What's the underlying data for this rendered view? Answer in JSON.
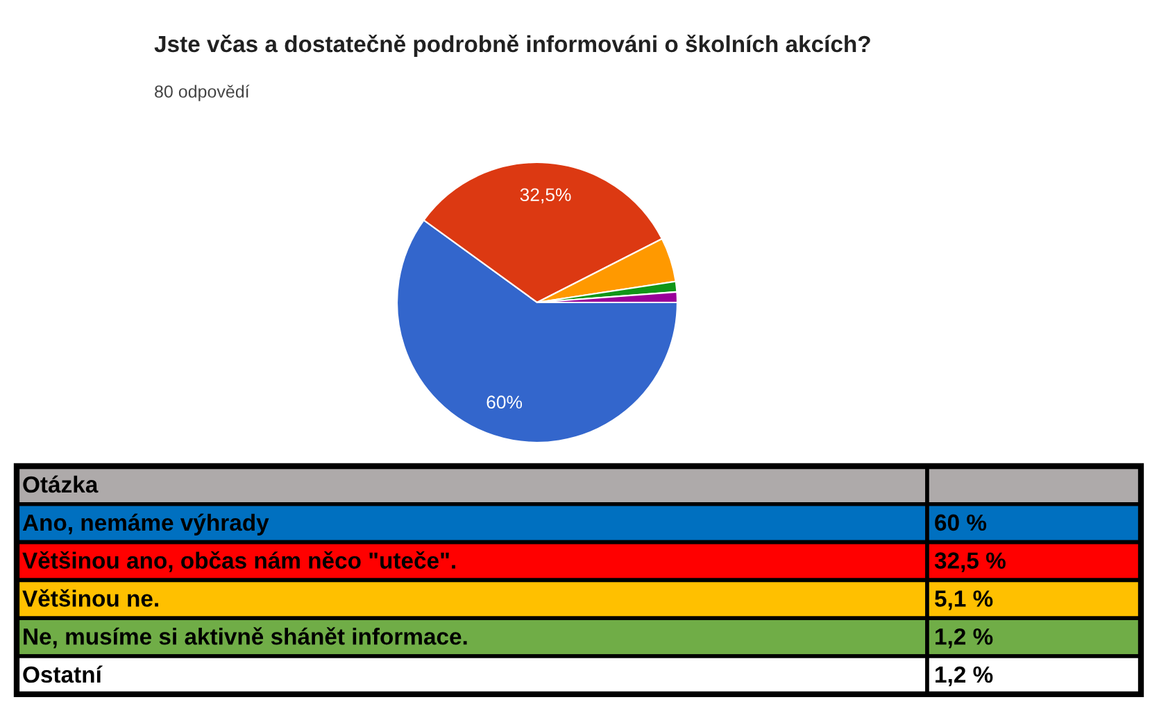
{
  "chart_data": [
    {
      "type": "pie",
      "title": "Jste včas a dostatečně podrobně informováni o školních akcích?",
      "subtitle": "80 odpovědí",
      "categories": [
        null,
        null,
        null,
        null,
        null
      ],
      "values": [
        60,
        32.5,
        5.1,
        1.2,
        1.2
      ],
      "colors": [
        "#3366cc",
        "#dc3912",
        "#ff9900",
        "#109618",
        "#990099"
      ],
      "value_labels": [
        "60%",
        "32,5%",
        null,
        null,
        null
      ]
    },
    {
      "type": "other",
      "annotations": [
        "Otázka",
        "Ano, nemáme výhrady",
        "60 %",
        "Většinou ano, občas nám něco \"uteče\".",
        "32,5 %",
        "Většinou ne.",
        "5,1 %",
        "Ne, musíme si aktivně shánět informace.",
        "1,2 %",
        "Ostatní",
        "1,2 %"
      ]
    }
  ]
}
